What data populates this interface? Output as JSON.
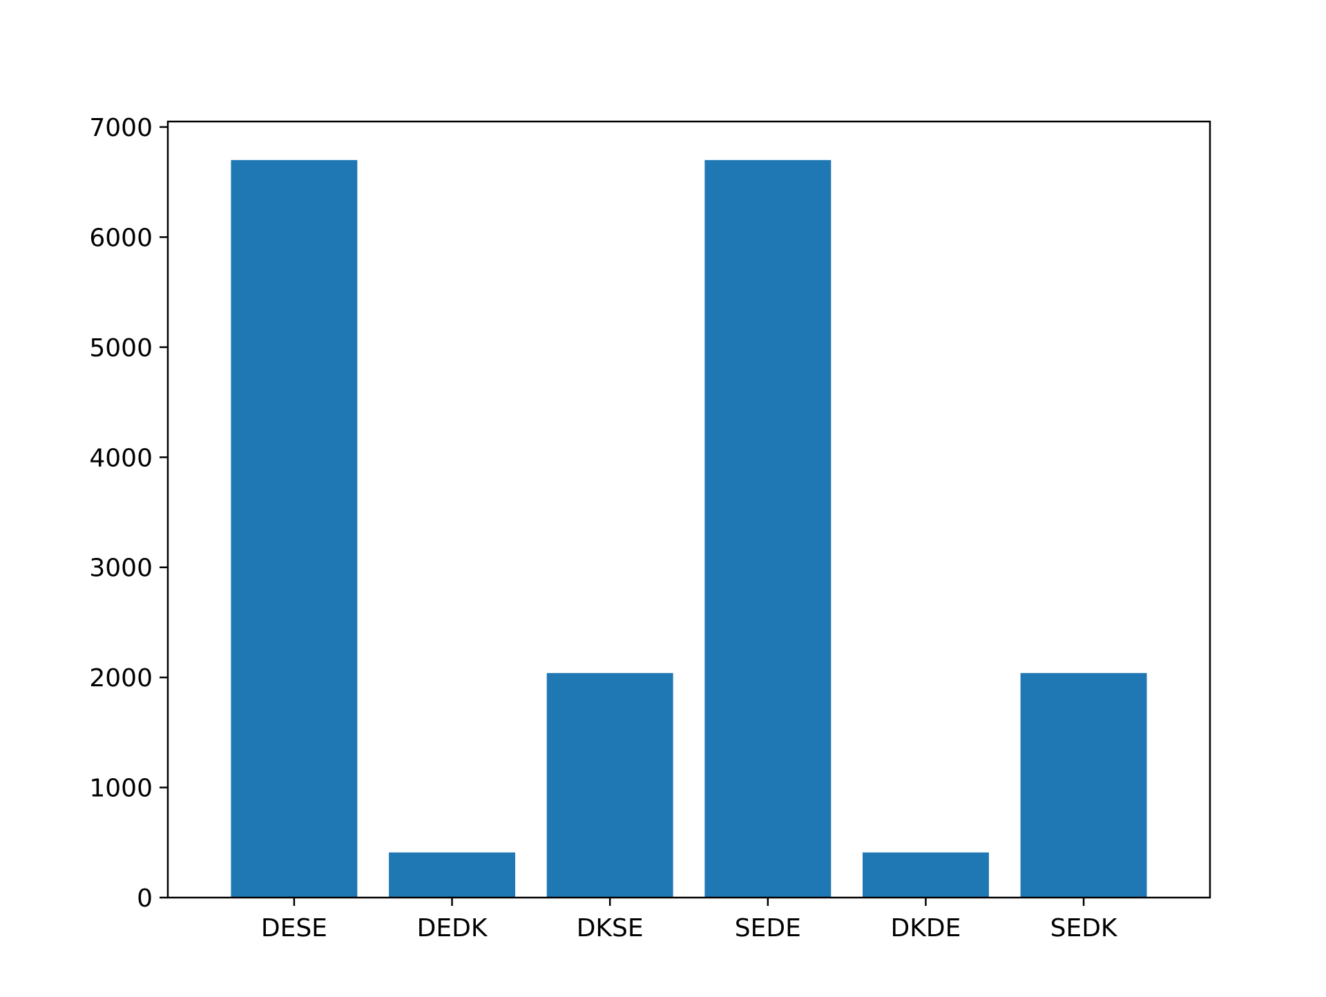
{
  "chart_data": {
    "type": "bar",
    "title": "",
    "xlabel": "",
    "ylabel": "",
    "categories": [
      "DESE",
      "DEDK",
      "DKSE",
      "SEDE",
      "DKDE",
      "SEDK"
    ],
    "values": [
      6700,
      410,
      2040,
      6700,
      410,
      2040
    ],
    "ylim": [
      0,
      7000
    ],
    "yticks": [
      0,
      1000,
      2000,
      3000,
      4000,
      5000,
      6000,
      7000
    ],
    "grid": false,
    "legend": "none",
    "bar_color": "#1f77b4"
  }
}
